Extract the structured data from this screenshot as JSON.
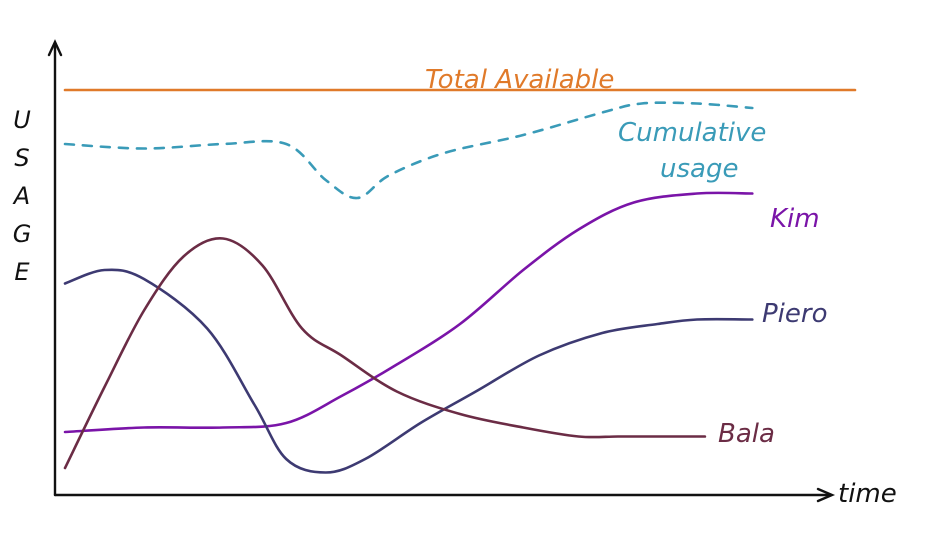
{
  "chart_data": {
    "type": "line",
    "ylabel": "USAGE",
    "xlabel": "time",
    "xlim": [
      0,
      100
    ],
    "ylim": [
      0,
      100
    ],
    "grid": false,
    "series": [
      {
        "name": "Total Available",
        "color": "#e07a2a",
        "style": "solid",
        "x": [
          0,
          100
        ],
        "y": [
          90,
          90
        ]
      },
      {
        "name": "Cumulative usage",
        "color": "#3a9bb8",
        "style": "dashed",
        "x": [
          0,
          10,
          20,
          28,
          33,
          37,
          41,
          48,
          58,
          68,
          73,
          80,
          87
        ],
        "y": [
          78,
          77,
          78,
          78,
          70,
          66,
          71,
          76,
          80,
          85,
          87,
          87,
          86
        ]
      },
      {
        "name": "Kim",
        "color": "#7a14a8",
        "style": "solid",
        "x": [
          0,
          10,
          20,
          28,
          35,
          42,
          50,
          58,
          65,
          72,
          80,
          87
        ],
        "y": [
          14,
          15,
          15,
          16,
          22,
          29,
          38,
          50,
          59,
          65,
          67,
          67
        ]
      },
      {
        "name": "Piero",
        "color": "#3d3a72",
        "style": "solid",
        "x": [
          0,
          5,
          10,
          18,
          24,
          28,
          33,
          38,
          45,
          52,
          60,
          68,
          75,
          80,
          87
        ],
        "y": [
          47,
          50,
          48,
          37,
          20,
          8,
          5,
          8,
          16,
          23,
          31,
          36,
          38,
          39,
          39
        ]
      },
      {
        "name": "Bala",
        "color": "#6b2c45",
        "style": "solid",
        "x": [
          0,
          5,
          10,
          15,
          20,
          25,
          30,
          35,
          42,
          50,
          58,
          65,
          70,
          75,
          81
        ],
        "y": [
          6,
          24,
          41,
          53,
          57,
          51,
          37,
          31,
          23,
          18,
          15,
          13,
          13,
          13,
          13
        ]
      }
    ]
  }
}
